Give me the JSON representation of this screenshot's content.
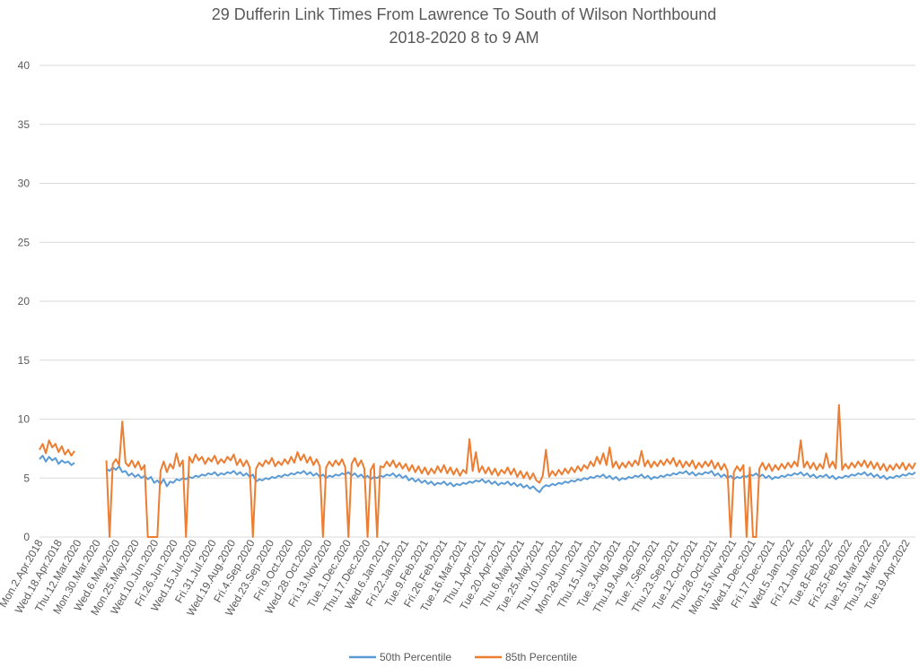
{
  "chart_data": {
    "type": "line",
    "title": "29 Dufferin Link Times From Lawrence To South of Wilson Northbound",
    "subtitle": "2018-2020 8 to 9 AM",
    "xlabel": "",
    "ylabel": "",
    "ylim": [
      0,
      40
    ],
    "yticks": [
      0,
      5,
      10,
      15,
      20,
      25,
      30,
      35,
      40
    ],
    "grid": true,
    "legend_position": "bottom",
    "x_tick_labels": [
      "Mon.2.Apr.2018",
      "Wed.18.Apr.2018",
      "Thu.12.Mar.2020",
      "Mon.30.Mar.2020",
      "Wed.6.May.2020",
      "Mon.25.May.2020",
      "Wed.10.Jun.2020",
      "Fri.26.Jun.2020",
      "Wed.15.Jul.2020",
      "Fri.31.Jul.2020",
      "Wed.19.Aug.2020",
      "Fri.4.Sep.2020",
      "Wed.23.Sep.2020",
      "Fri.9.Oct.2020",
      "Wed.28.Oct.2020",
      "Fri.13.Nov.2020",
      "Tue.1.Dec.2020",
      "Thu.17.Dec.2020",
      "Wed.6.Jan.2021",
      "Fri.22.Jan.2021",
      "Tue.9.Feb.2021",
      "Fri.26.Feb.2021",
      "Tue.16.Mar.2021",
      "Thu.1.Apr.2021",
      "Tue.20.Apr.2021",
      "Thu.6.May.2021",
      "Tue.25.May.2021",
      "Thu.10.Jun.2021",
      "Mon.28.Jun.2021",
      "Thu.15.Jul.2021",
      "Tue.3.Aug.2021",
      "Thu.19.Aug.2021",
      "Tue.7.Sep.2021",
      "Thu.23.Sep.2021",
      "Tue.12.Oct.2021",
      "Thu.28.Oct.2021",
      "Mon.15.Nov.2021",
      "Wed.1.Dec.2021",
      "Fri.17.Dec.2021",
      "Wed.5.Jan.2022",
      "Fri.21.Jan.2022",
      "Tue.8.Feb.2022",
      "Fri.25.Feb.2022",
      "Tue.15.Mar.2022",
      "Thu.31.Mar.2022",
      "Tue.19.Apr.2022"
    ],
    "series": [
      {
        "name": "50th Percentile",
        "color": "#5b9bd5",
        "values": [
          6.6,
          6.9,
          6.4,
          6.8,
          6.5,
          6.7,
          6.2,
          6.5,
          6.3,
          6.4,
          6.1,
          6.3,
          null,
          null,
          null,
          null,
          null,
          null,
          null,
          null,
          null,
          5.8,
          5.6,
          5.9,
          5.7,
          6.0,
          5.5,
          5.6,
          5.2,
          5.4,
          5.1,
          5.3,
          5.0,
          5.2,
          4.9,
          5.1,
          4.6,
          4.8,
          4.5,
          4.9,
          4.3,
          4.7,
          4.6,
          4.9,
          4.8,
          5.0,
          4.9,
          5.1,
          5.0,
          5.2,
          5.1,
          5.3,
          5.2,
          5.4,
          5.3,
          5.5,
          5.2,
          5.4,
          5.3,
          5.5,
          5.4,
          5.6,
          5.3,
          5.5,
          5.2,
          5.4,
          5.1,
          5.3,
          4.7,
          4.9,
          4.8,
          5.0,
          4.9,
          5.1,
          5.0,
          5.2,
          5.1,
          5.3,
          5.2,
          5.4,
          5.3,
          5.5,
          5.4,
          5.6,
          5.3,
          5.5,
          5.2,
          5.4,
          5.1,
          5.3,
          5.0,
          5.2,
          5.1,
          5.3,
          5.2,
          5.4,
          5.3,
          5.5,
          5.2,
          5.4,
          5.1,
          5.3,
          5.0,
          5.2,
          4.9,
          5.1,
          5.0,
          5.2,
          5.1,
          5.3,
          5.2,
          5.4,
          5.1,
          5.3,
          5.0,
          5.2,
          4.8,
          5.0,
          4.7,
          4.9,
          4.6,
          4.8,
          4.5,
          4.7,
          4.4,
          4.6,
          4.5,
          4.7,
          4.4,
          4.6,
          4.3,
          4.5,
          4.4,
          4.6,
          4.5,
          4.7,
          4.6,
          4.8,
          4.7,
          4.9,
          4.6,
          4.8,
          4.5,
          4.7,
          4.4,
          4.6,
          4.5,
          4.7,
          4.4,
          4.6,
          4.3,
          4.5,
          4.2,
          4.4,
          4.1,
          4.3,
          4.0,
          3.8,
          4.2,
          4.4,
          4.3,
          4.5,
          4.4,
          4.6,
          4.5,
          4.7,
          4.6,
          4.8,
          4.7,
          4.9,
          4.8,
          5.0,
          4.9,
          5.1,
          5.0,
          5.2,
          5.1,
          5.3,
          5.0,
          5.2,
          4.9,
          5.1,
          4.8,
          5.0,
          4.9,
          5.1,
          5.0,
          5.2,
          5.1,
          5.3,
          5.0,
          5.2,
          4.9,
          5.1,
          5.0,
          5.2,
          5.1,
          5.3,
          5.2,
          5.4,
          5.3,
          5.5,
          5.4,
          5.6,
          5.3,
          5.5,
          5.2,
          5.4,
          5.3,
          5.5,
          5.4,
          5.6,
          5.2,
          5.4,
          5.1,
          5.3,
          5.0,
          5.2,
          4.9,
          5.1,
          5.0,
          5.2,
          5.1,
          5.3,
          5.2,
          5.4,
          5.1,
          5.3,
          5.0,
          5.2,
          4.9,
          5.1,
          5.0,
          5.2,
          5.1,
          5.3,
          5.2,
          5.4,
          5.3,
          5.5,
          5.2,
          5.4,
          5.1,
          5.3,
          5.0,
          5.2,
          5.1,
          5.3,
          5.0,
          5.2,
          4.9,
          5.1,
          5.0,
          5.2,
          5.1,
          5.3,
          5.2,
          5.4,
          5.3,
          5.5,
          5.2,
          5.4,
          5.1,
          5.3,
          5.0,
          5.2,
          4.9,
          5.1,
          5.0,
          5.2,
          5.1,
          5.3,
          5.2,
          5.4,
          5.3,
          5.5
        ]
      },
      {
        "name": "85th Percentile",
        "color": "#ed7d31",
        "values": [
          7.4,
          7.9,
          7.1,
          8.2,
          7.6,
          7.9,
          7.2,
          7.7,
          7.0,
          7.4,
          6.9,
          7.3,
          null,
          null,
          null,
          null,
          null,
          null,
          null,
          null,
          null,
          6.5,
          0,
          6.2,
          6.6,
          6.1,
          9.8,
          6.3,
          6.0,
          6.5,
          5.9,
          6.4,
          5.7,
          6.1,
          0,
          0,
          0,
          0,
          5.6,
          6.4,
          5.5,
          6.2,
          5.8,
          7.1,
          6.0,
          6.5,
          0,
          6.8,
          6.3,
          7.0,
          6.5,
          6.8,
          6.2,
          6.7,
          6.4,
          6.9,
          6.2,
          6.6,
          6.3,
          6.8,
          6.5,
          7.0,
          6.1,
          6.6,
          6.0,
          6.5,
          5.9,
          0,
          5.8,
          6.3,
          6.0,
          6.5,
          6.2,
          6.7,
          6.0,
          6.4,
          6.1,
          6.6,
          6.2,
          6.8,
          6.3,
          7.2,
          6.5,
          7.0,
          6.3,
          6.8,
          6.1,
          6.6,
          6.0,
          0,
          5.9,
          6.4,
          6.0,
          6.5,
          6.1,
          6.6,
          5.9,
          0,
          6.2,
          6.7,
          6.0,
          6.5,
          5.8,
          0,
          5.7,
          6.2,
          0,
          6.0,
          5.9,
          6.4,
          6.0,
          6.5,
          5.9,
          6.3,
          5.8,
          6.2,
          5.6,
          6.1,
          5.5,
          6.0,
          5.4,
          5.9,
          5.3,
          5.8,
          5.4,
          6.0,
          5.5,
          6.1,
          5.4,
          5.9,
          5.3,
          5.8,
          5.2,
          5.7,
          5.4,
          8.3,
          5.6,
          7.2,
          5.5,
          6.0,
          5.4,
          5.9,
          5.3,
          5.8,
          5.2,
          5.7,
          5.4,
          5.9,
          5.3,
          5.8,
          5.1,
          5.6,
          5.0,
          5.5,
          4.9,
          5.4,
          4.8,
          4.6,
          5.2,
          7.4,
          5.1,
          5.6,
          5.2,
          5.7,
          5.3,
          5.8,
          5.4,
          5.9,
          5.5,
          6.0,
          5.6,
          6.1,
          5.8,
          6.4,
          6.0,
          6.8,
          6.2,
          7.1,
          6.1,
          7.6,
          5.9,
          6.4,
          5.8,
          6.3,
          5.9,
          6.4,
          6.0,
          6.5,
          6.1,
          7.3,
          6.0,
          6.5,
          5.9,
          6.4,
          6.0,
          6.5,
          6.1,
          6.6,
          6.2,
          6.7,
          6.0,
          6.5,
          5.9,
          6.4,
          6.0,
          6.5,
          5.8,
          6.3,
          5.9,
          6.4,
          6.0,
          6.5,
          5.8,
          6.3,
          5.7,
          6.2,
          5.6,
          0,
          5.5,
          6.0,
          5.6,
          6.1,
          0,
          5.9,
          0,
          0,
          5.8,
          6.3,
          5.7,
          6.2,
          5.6,
          6.1,
          5.7,
          6.2,
          5.8,
          6.3,
          5.9,
          6.4,
          6.0,
          8.2,
          5.9,
          6.4,
          5.8,
          6.3,
          5.7,
          6.2,
          5.8,
          7.1,
          5.9,
          6.4,
          5.8,
          11.2,
          5.7,
          6.2,
          5.8,
          6.3,
          5.9,
          6.4,
          6.0,
          6.5,
          5.9,
          6.4,
          5.8,
          6.3,
          5.7,
          6.2,
          5.6,
          6.1,
          5.7,
          6.2,
          5.8,
          6.3,
          5.7,
          6.2,
          5.8,
          6.3
        ]
      }
    ]
  }
}
